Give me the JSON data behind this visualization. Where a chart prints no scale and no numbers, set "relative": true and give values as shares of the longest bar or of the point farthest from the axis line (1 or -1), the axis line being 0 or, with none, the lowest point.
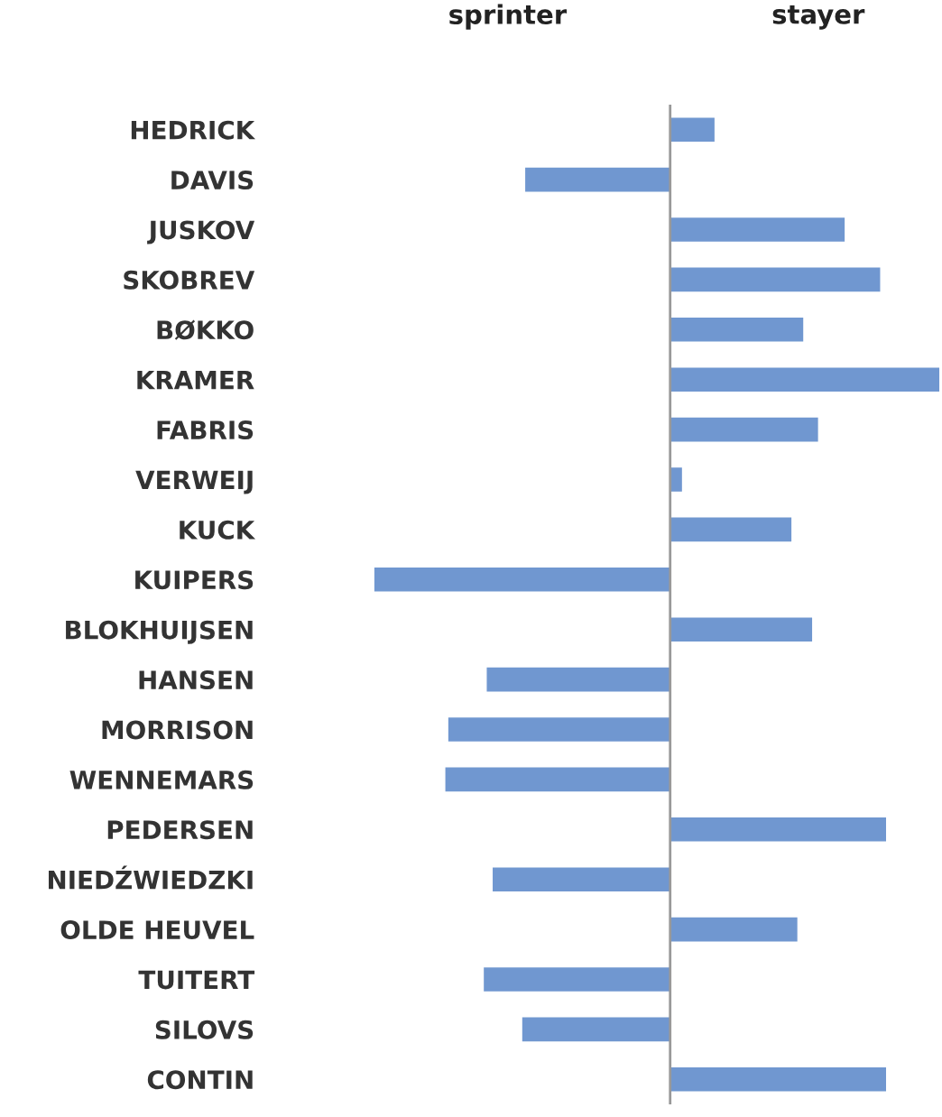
{
  "chart_data": {
    "type": "bar",
    "orientation": "horizontal",
    "relative": true,
    "categories": [
      "HEDRICK",
      "DAVIS",
      "JUSKOV",
      "SKOBREV",
      "BØKKO",
      "KRAMER",
      "FABRIS",
      "VERWEIJ",
      "KUCK",
      "KUIPERS",
      "BLOKHUIJSEN",
      "HANSEN",
      "MORRISON",
      "WENNEMARS",
      "PEDERSEN",
      "NIEDŹWIEDZKI",
      "OLDE HEUVEL",
      "TUITERT",
      "SILOVS",
      "CONTIN"
    ],
    "values": [
      0.15,
      -0.49,
      0.59,
      0.71,
      0.45,
      0.91,
      0.5,
      0.04,
      0.41,
      -1,
      0.48,
      -0.62,
      -0.75,
      -0.76,
      0.73,
      -0.6,
      0.43,
      -0.63,
      -0.5,
      0.73
    ],
    "color": "#7097d0",
    "annotations": [
      "sprinter",
      "stayer"
    ],
    "grid": false,
    "legend": false
  }
}
